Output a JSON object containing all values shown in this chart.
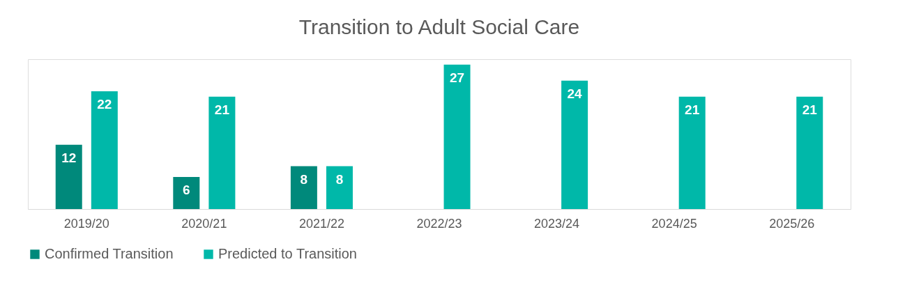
{
  "chart_data": {
    "type": "bar",
    "title": "Transition to Adult Social Care",
    "categories": [
      "2019/20",
      "2020/21",
      "2021/22",
      "2022/23",
      "2023/24",
      "2024/25",
      "2025/26"
    ],
    "series": [
      {
        "name": "Confirmed Transition",
        "color": "#00897b",
        "values": [
          12,
          6,
          8,
          null,
          null,
          null,
          null
        ]
      },
      {
        "name": "Predicted to Transition",
        "color": "#00b8a9",
        "values": [
          22,
          21,
          8,
          27,
          24,
          21,
          21
        ]
      }
    ],
    "data_labels": true,
    "legend": "bottom",
    "grid": false,
    "tick_labels": "x"
  }
}
